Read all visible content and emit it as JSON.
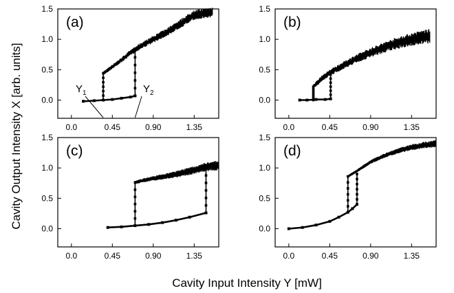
{
  "figure": {
    "ylabel": "Cavity Output Intensity X [arb. units]",
    "xlabel": "Cavity Input Intensity Y [mW]",
    "colors": {
      "data": "#000000",
      "axes": "#000000",
      "background": "#ffffff"
    }
  },
  "chart_data": [
    {
      "type": "scatter",
      "label": "(a)",
      "xlim": [
        -0.15,
        1.62
      ],
      "ylim": [
        -0.3,
        1.5
      ],
      "xticks": [
        "0.0",
        "0.45",
        "0.90",
        "1.35"
      ],
      "yticks": [
        "0.0",
        "0.5",
        "1.0",
        "1.5"
      ],
      "grid": false,
      "lower_branch": {
        "x": [
          0.13,
          0.25,
          0.35,
          0.45,
          0.55,
          0.65,
          0.7
        ],
        "y": [
          -0.02,
          -0.01,
          0.0,
          0.01,
          0.03,
          0.05,
          0.07
        ]
      },
      "upper_branch": {
        "x": [
          0.35,
          0.45,
          0.55,
          0.65,
          0.75,
          0.9,
          1.05,
          1.2,
          1.35,
          1.55
        ],
        "y": [
          0.44,
          0.55,
          0.66,
          0.78,
          0.88,
          1.0,
          1.12,
          1.26,
          1.4,
          1.45
        ]
      },
      "jumps": [
        {
          "x": 0.35,
          "y_from": 0.0,
          "y_to": 0.44
        },
        {
          "x": 0.7,
          "y_from": 0.07,
          "y_to": 0.83
        }
      ],
      "noise_amplitude": 0.09,
      "annotations": [
        {
          "text": "Y",
          "sub": "1",
          "x": 0.36,
          "y": -0.28
        },
        {
          "text": "Y",
          "sub": "2",
          "x": 0.66,
          "y": -0.28
        }
      ]
    },
    {
      "type": "scatter",
      "label": "(b)",
      "xlim": [
        -0.15,
        1.62
      ],
      "ylim": [
        -0.3,
        1.5
      ],
      "xticks": [
        "0.0",
        "0.45",
        "0.90",
        "1.35"
      ],
      "yticks": [
        "0.0",
        "0.5",
        "1.0",
        "1.5"
      ],
      "grid": false,
      "lower_branch": {
        "x": [
          0.12,
          0.2,
          0.3,
          0.4,
          0.46
        ],
        "y": [
          0.0,
          0.0,
          0.01,
          0.01,
          0.02
        ]
      },
      "upper_branch": {
        "x": [
          0.27,
          0.35,
          0.45,
          0.55,
          0.7,
          0.85,
          1.0,
          1.15,
          1.3,
          1.45,
          1.55
        ],
        "y": [
          0.22,
          0.34,
          0.45,
          0.53,
          0.65,
          0.75,
          0.84,
          0.92,
          0.98,
          1.03,
          1.05
        ]
      },
      "jumps": [
        {
          "x": 0.27,
          "y_from": 0.0,
          "y_to": 0.22
        },
        {
          "x": 0.46,
          "y_from": 0.02,
          "y_to": 0.42
        }
      ],
      "noise_amplitude": 0.12,
      "annotations": []
    },
    {
      "type": "scatter",
      "label": "(c)",
      "xlim": [
        -0.15,
        1.62
      ],
      "ylim": [
        -0.3,
        1.5
      ],
      "xticks": [
        "0.0",
        "0.45",
        "0.90",
        "1.35"
      ],
      "yticks": [
        "0.0",
        "0.5",
        "1.0",
        "1.5"
      ],
      "grid": false,
      "lower_branch": {
        "x": [
          0.4,
          0.55,
          0.7,
          0.85,
          1.0,
          1.15,
          1.3,
          1.48
        ],
        "y": [
          0.02,
          0.03,
          0.05,
          0.07,
          0.1,
          0.14,
          0.19,
          0.26
        ]
      },
      "upper_branch": {
        "x": [
          0.7,
          0.8,
          0.95,
          1.1,
          1.25,
          1.4,
          1.48,
          1.62
        ],
        "y": [
          0.76,
          0.8,
          0.84,
          0.88,
          0.93,
          0.98,
          1.02,
          1.04
        ]
      },
      "jumps": [
        {
          "x": 0.7,
          "y_from": 0.05,
          "y_to": 0.76
        },
        {
          "x": 1.48,
          "y_from": 0.26,
          "y_to": 1.0
        }
      ],
      "noise_amplitude": 0.08,
      "annotations": []
    },
    {
      "type": "scatter",
      "label": "(d)",
      "xlim": [
        -0.15,
        1.62
      ],
      "ylim": [
        -0.3,
        1.5
      ],
      "xticks": [
        "0.0",
        "0.45",
        "0.90",
        "1.35"
      ],
      "yticks": [
        "0.0",
        "0.5",
        "1.0",
        "1.5"
      ],
      "grid": false,
      "lower_branch": {
        "x": [
          0.0,
          0.15,
          0.3,
          0.45,
          0.55,
          0.65,
          0.7,
          0.75
        ],
        "y": [
          0.0,
          0.02,
          0.06,
          0.12,
          0.19,
          0.27,
          0.33,
          0.4
        ]
      },
      "upper_branch": {
        "x": [
          0.65,
          0.75,
          0.9,
          1.05,
          1.2,
          1.35,
          1.5,
          1.62
        ],
        "y": [
          0.86,
          0.95,
          1.1,
          1.2,
          1.28,
          1.34,
          1.38,
          1.4
        ]
      },
      "jumps": [
        {
          "x": 0.65,
          "y_from": 0.27,
          "y_to": 0.86
        },
        {
          "x": 0.75,
          "y_from": 0.4,
          "y_to": 0.9
        }
      ],
      "noise_amplitude": 0.06,
      "annotations": []
    }
  ]
}
